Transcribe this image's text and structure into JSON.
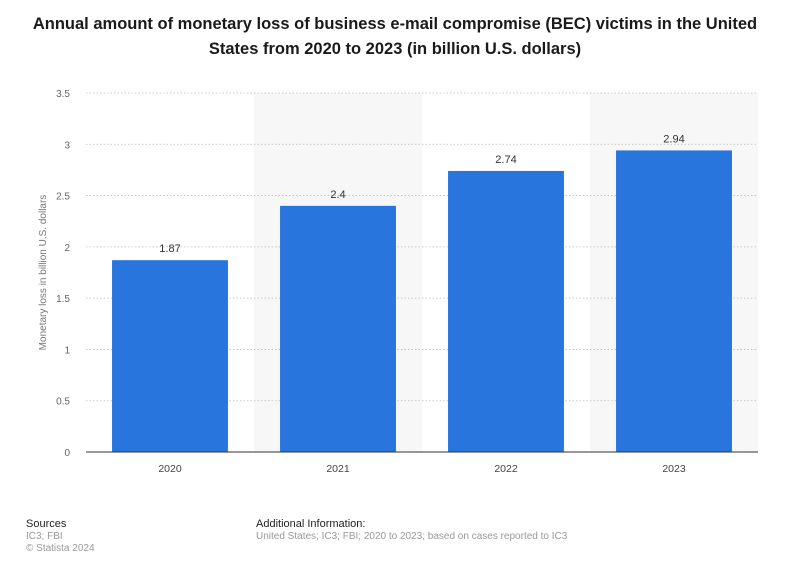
{
  "chart_data": {
    "type": "bar",
    "title": "Annual amount of monetary loss of business e-mail compromise (BEC) victims in the United States from 2020 to 2023 (in billion U.S. dollars)",
    "categories": [
      "2020",
      "2021",
      "2022",
      "2023"
    ],
    "values": [
      1.87,
      2.4,
      2.74,
      2.94
    ],
    "data_labels": [
      "1.87",
      "2.4",
      "2.74",
      "2.94"
    ],
    "xlabel": "",
    "ylabel": "Monetary loss in billion U.S. dollars",
    "ylim": [
      0,
      3.5
    ],
    "yticks": [
      0,
      0.5,
      1,
      1.5,
      2,
      2.5,
      3,
      3.5
    ],
    "ytick_labels": [
      "0",
      "0.5",
      "1",
      "1.5",
      "2",
      "2.5",
      "3",
      "3.5"
    ],
    "grid": true,
    "bar_color": "#2876dd",
    "alt_band_color": "#f7f7f7"
  },
  "footer": {
    "sources_heading": "Sources",
    "sources_text": "IC3; FBI",
    "copyright": "© Statista 2024",
    "additional_heading": "Additional Information:",
    "additional_text": "United States; IC3; FBI; 2020 to 2023; based on cases reported to IC3"
  }
}
